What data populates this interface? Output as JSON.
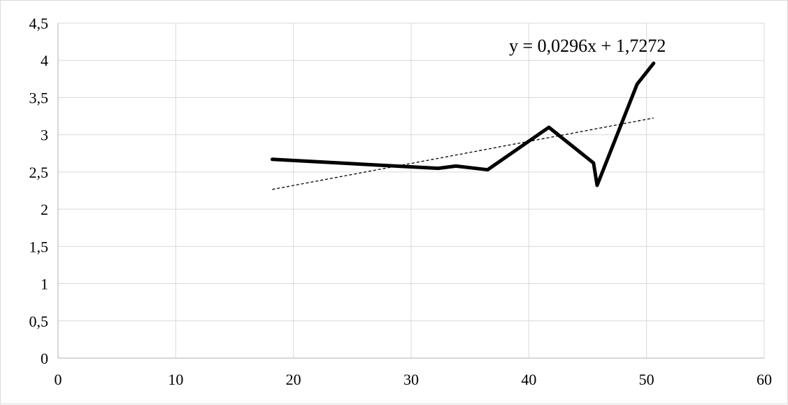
{
  "chart_data": {
    "type": "line",
    "title": "",
    "xlabel": "",
    "ylabel": "",
    "xlim": [
      0,
      60
    ],
    "ylim": [
      0,
      4.5
    ],
    "x_ticks": [
      0,
      10,
      20,
      30,
      40,
      50,
      60
    ],
    "y_ticks": [
      0,
      0.5,
      1,
      1.5,
      2,
      2.5,
      3,
      3.5,
      4,
      4.5
    ],
    "x_tick_labels": [
      "0",
      "10",
      "20",
      "30",
      "40",
      "50",
      "60"
    ],
    "y_tick_labels": [
      "0",
      "0,5",
      "1",
      "1,5",
      "2",
      "2,5",
      "3",
      "3,5",
      "4",
      "4,5"
    ],
    "grid": true,
    "legend": false,
    "series": [
      {
        "x": [
          18.2,
          32.3,
          33.8,
          36.5,
          41.7,
          45.5,
          45.8,
          49.2,
          50.6
        ],
        "y": [
          2.67,
          2.55,
          2.58,
          2.53,
          3.1,
          2.62,
          2.32,
          3.68,
          3.96
        ],
        "color": "#000000",
        "style": "solid-thick"
      }
    ],
    "trendline": {
      "slope": 0.0296,
      "intercept": 1.7272,
      "x_range": [
        18.2,
        50.6
      ],
      "equation_label": "y = 0,0296x + 1,7272",
      "style": "dashed",
      "color": "#000000"
    }
  }
}
